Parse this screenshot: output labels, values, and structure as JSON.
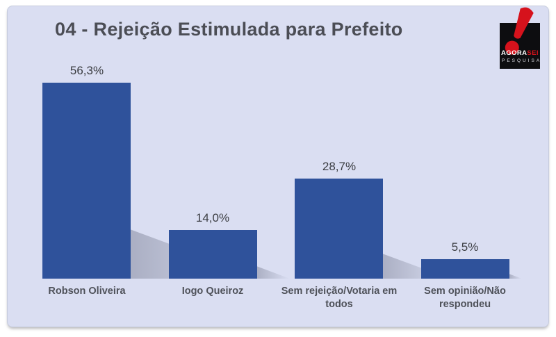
{
  "slide": {
    "title": "04 - Rejeição Estimulada para Prefeito",
    "title_color": "#4B4D55",
    "background": "#DADEF2"
  },
  "logo": {
    "name": "AgoraSei Pesquisa",
    "word1": "AGORA",
    "word2": "SEI",
    "word3": "PESQUISA",
    "background": "#0D0D10",
    "accent_red": "#D6121C"
  },
  "chart_data": {
    "type": "bar",
    "title": "04 - Rejeição Estimulada para Prefeito",
    "categories": [
      "Robson Oliveira",
      "Iogo Queiroz",
      "Sem rejeição/Votaria em todos",
      "Sem opinião/Não respondeu"
    ],
    "category_lines": [
      [
        "Robson Oliveira"
      ],
      [
        "Iogo Queiroz"
      ],
      [
        "Sem rejeição/Votaria em",
        "todos"
      ],
      [
        "Sem opinião/Não",
        "respondeu"
      ]
    ],
    "values": [
      56.3,
      14.0,
      28.7,
      5.5
    ],
    "value_labels": [
      "56,3%",
      "14,0%",
      "28,7%",
      "5,5%"
    ],
    "unit": "%",
    "ylim": [
      0,
      60
    ],
    "bar_color": "#2F529B",
    "background_color": "#DADEF2",
    "grid": false,
    "legend": false,
    "data_labels": "above bars"
  }
}
